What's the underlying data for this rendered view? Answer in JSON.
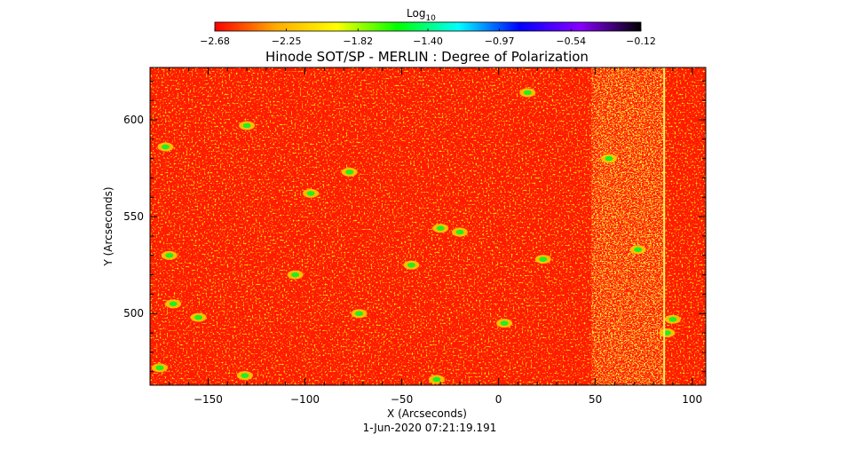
{
  "chart_data": {
    "type": "heatmap",
    "title": "Hinode SOT/SP - MERLIN : Degree of Polarization",
    "xlabel": "X (Arcseconds)",
    "ylabel": "Y (Arcseconds)",
    "footer": "1-Jun-2020 07:21:19.191",
    "xlim": [
      -180,
      107
    ],
    "ylim": [
      463,
      627
    ],
    "x_ticks": [
      -150,
      -100,
      -50,
      0,
      50,
      100
    ],
    "x_tick_labels": [
      "−150",
      "−100",
      "−50",
      "0",
      "50",
      "100"
    ],
    "y_ticks": [
      500,
      550,
      600
    ],
    "y_tick_labels": [
      "500",
      "550",
      "600"
    ],
    "colorbar": {
      "label": "Log",
      "label_sub": "10",
      "ticks": [
        -2.68,
        -2.25,
        -1.82,
        -1.4,
        -0.97,
        -0.54,
        -0.12
      ],
      "tick_labels": [
        "−2.68",
        "−2.25",
        "−1.82",
        "−1.40",
        "−0.97",
        "−0.54",
        "−0.12"
      ],
      "range": [
        -2.68,
        -0.12
      ],
      "colors": [
        "#ff0000",
        "#ffaa00",
        "#ffff00",
        "#00ff00",
        "#00ffff",
        "#0000ff",
        "#8800ff",
        "#000000"
      ]
    },
    "background_value": -2.68,
    "green_patches": [
      {
        "x": -172,
        "y": 586
      },
      {
        "x": -170,
        "y": 530
      },
      {
        "x": -168,
        "y": 505
      },
      {
        "x": -155,
        "y": 498
      },
      {
        "x": -175,
        "y": 472
      },
      {
        "x": -130,
        "y": 597
      },
      {
        "x": -131,
        "y": 468
      },
      {
        "x": -105,
        "y": 520
      },
      {
        "x": -97,
        "y": 562
      },
      {
        "x": -77,
        "y": 573
      },
      {
        "x": -72,
        "y": 500
      },
      {
        "x": -45,
        "y": 525
      },
      {
        "x": -30,
        "y": 544
      },
      {
        "x": -32,
        "y": 466
      },
      {
        "x": -20,
        "y": 542
      },
      {
        "x": 3,
        "y": 495
      },
      {
        "x": 15,
        "y": 614
      },
      {
        "x": 23,
        "y": 528
      },
      {
        "x": 57,
        "y": 580
      },
      {
        "x": 72,
        "y": 533
      },
      {
        "x": 87,
        "y": 490
      },
      {
        "x": 90,
        "y": 497
      }
    ],
    "yellow_stripe_x": [
      48,
      86
    ]
  }
}
